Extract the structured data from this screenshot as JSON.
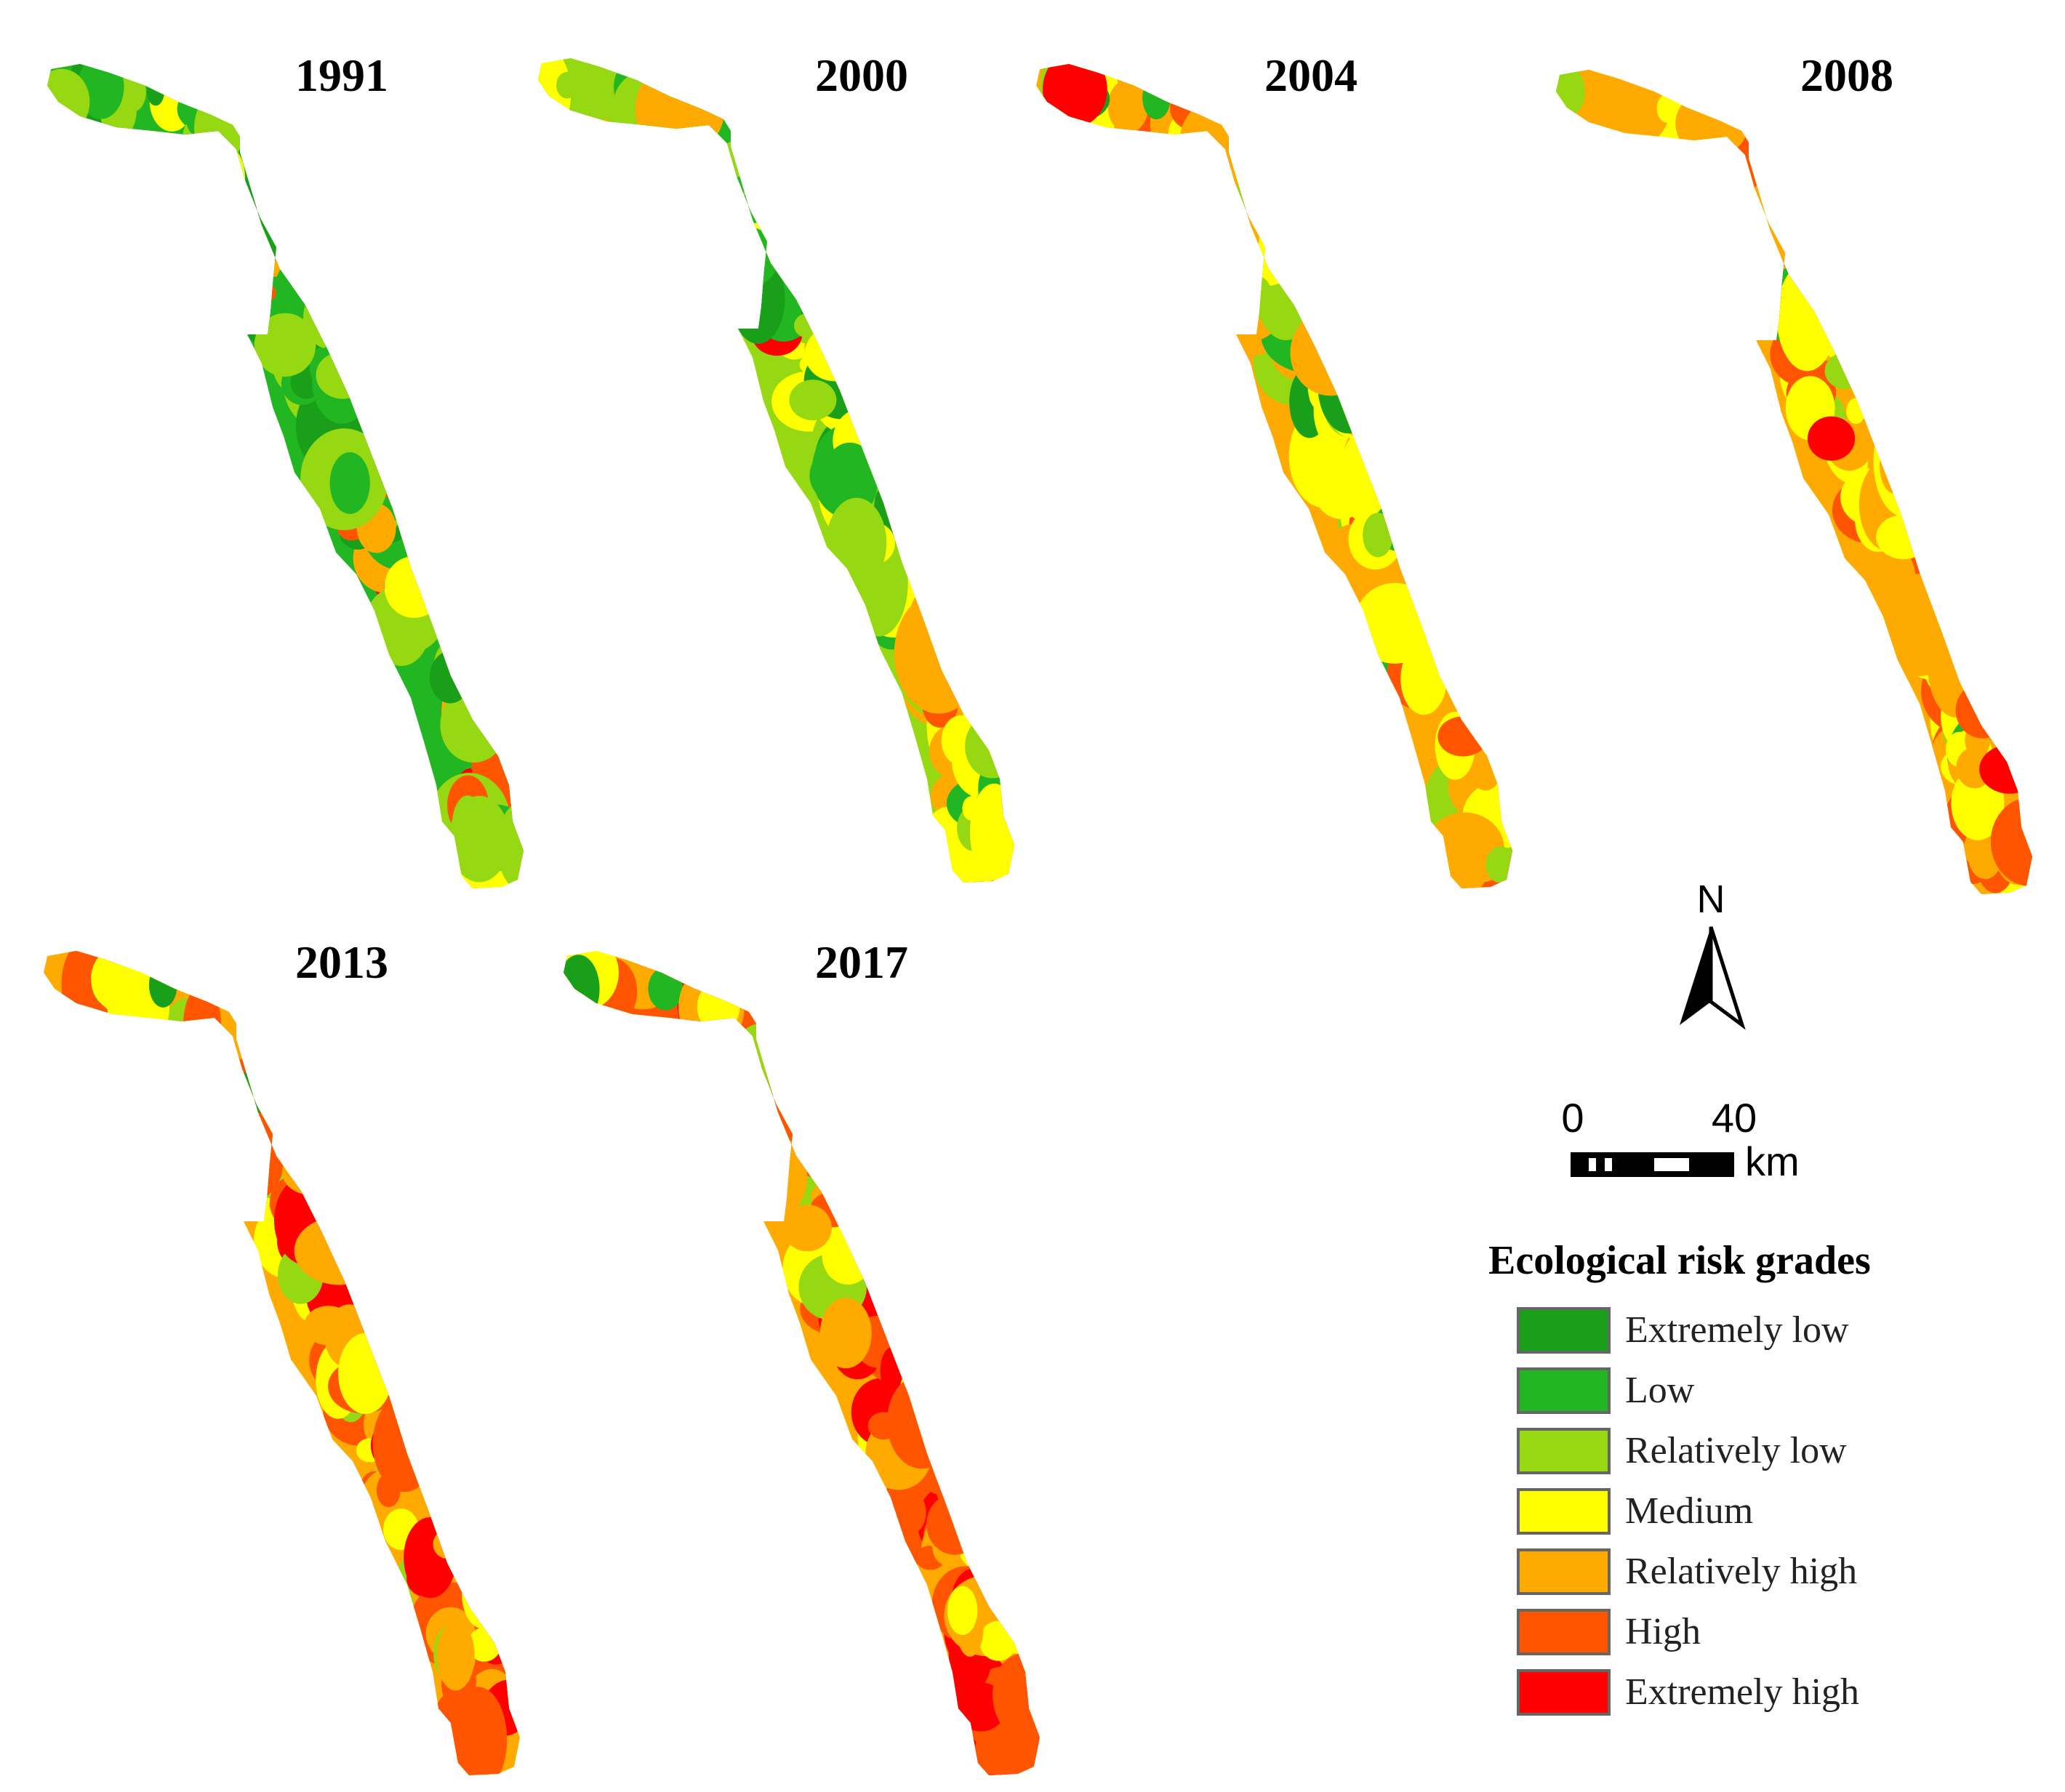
{
  "panels": [
    {
      "year": "1991",
      "weights": [
        0.26,
        0.3,
        0.26,
        0.09,
        0.05,
        0.03,
        0.01
      ]
    },
    {
      "year": "2000",
      "weights": [
        0.1,
        0.22,
        0.3,
        0.22,
        0.12,
        0.03,
        0.01
      ]
    },
    {
      "year": "2004",
      "weights": [
        0.03,
        0.06,
        0.12,
        0.33,
        0.38,
        0.06,
        0.02
      ]
    },
    {
      "year": "2008",
      "weights": [
        0.03,
        0.05,
        0.1,
        0.28,
        0.38,
        0.13,
        0.03
      ]
    },
    {
      "year": "2013",
      "weights": [
        0.03,
        0.04,
        0.1,
        0.2,
        0.33,
        0.2,
        0.1
      ]
    },
    {
      "year": "2017",
      "weights": [
        0.03,
        0.04,
        0.11,
        0.18,
        0.3,
        0.22,
        0.12
      ]
    }
  ],
  "north_arrow": {
    "label": "N"
  },
  "scale_bar": {
    "start": "0",
    "end": "40",
    "unit": "km"
  },
  "legend": {
    "title": "Ecological risk grades",
    "items": [
      {
        "label": "Extremely low",
        "color": "#1a9f1a"
      },
      {
        "label": "Low",
        "color": "#22b722"
      },
      {
        "label": "Relatively low",
        "color": "#96d811"
      },
      {
        "label": "Medium",
        "color": "#ffff00"
      },
      {
        "label": "Relatively high",
        "color": "#ffaa00"
      },
      {
        "label": "High",
        "color": "#ff5500"
      },
      {
        "label": "Extremely high",
        "color": "#ff0000"
      }
    ]
  }
}
